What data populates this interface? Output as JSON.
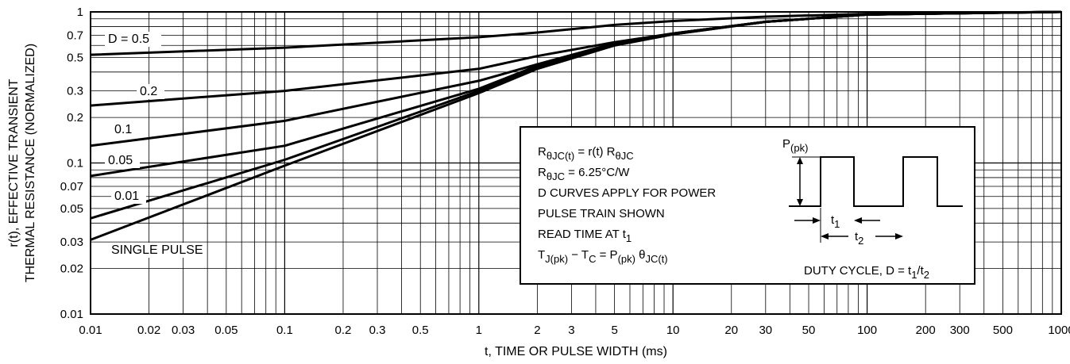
{
  "chart_data": {
    "type": "line",
    "x_scale": "log",
    "y_scale": "log",
    "xlim": [
      0.01,
      1000
    ],
    "ylim": [
      0.01,
      1
    ],
    "grid": true,
    "xlabel": "t, TIME OR PULSE WIDTH (ms)",
    "ylabel_line1": "r(t), EFFECTIVE TRANSIENT",
    "ylabel_line2": "THERMAL RESISTANCE (NORMALIZED)",
    "x_tick_labels": [
      "0.01",
      "0.02",
      "0.03",
      "0.05",
      "0.1",
      "0.2",
      "0.3",
      "0.5",
      "1",
      "2",
      "3",
      "5",
      "10",
      "20",
      "30",
      "50",
      "100",
      "200",
      "300",
      "500",
      "1000"
    ],
    "y_tick_labels": [
      "0.01",
      "0.02",
      "0.03",
      "0.05",
      "0.07",
      "0.1",
      "0.2",
      "0.3",
      "0.5",
      "0.7",
      "1"
    ],
    "series": [
      {
        "name": "D = 0.5",
        "x": [
          0.01,
          0.1,
          1,
          2,
          5,
          10,
          30,
          100,
          1000
        ],
        "y": [
          0.52,
          0.58,
          0.68,
          0.73,
          0.82,
          0.87,
          0.93,
          0.97,
          1.0
        ]
      },
      {
        "name": "0.2",
        "x": [
          0.01,
          0.1,
          1,
          2,
          5,
          10,
          30,
          100,
          1000
        ],
        "y": [
          0.24,
          0.3,
          0.42,
          0.51,
          0.63,
          0.72,
          0.86,
          0.96,
          1.0
        ]
      },
      {
        "name": "0.1",
        "x": [
          0.01,
          0.1,
          1,
          2,
          5,
          10,
          30,
          100,
          1000
        ],
        "y": [
          0.13,
          0.19,
          0.35,
          0.45,
          0.62,
          0.72,
          0.86,
          0.96,
          1.0
        ]
      },
      {
        "name": "0.05",
        "x": [
          0.01,
          0.1,
          1,
          2,
          5,
          10,
          30,
          100,
          1000
        ],
        "y": [
          0.082,
          0.13,
          0.31,
          0.44,
          0.61,
          0.72,
          0.86,
          0.96,
          1.0
        ]
      },
      {
        "name": "0.01",
        "x": [
          0.01,
          0.1,
          1,
          2,
          5,
          10,
          30,
          100,
          1000
        ],
        "y": [
          0.043,
          0.105,
          0.3,
          0.43,
          0.6,
          0.71,
          0.86,
          0.96,
          1.0
        ]
      },
      {
        "name": "SINGLE PULSE",
        "x": [
          0.01,
          0.1,
          1,
          2,
          5,
          10,
          30,
          100,
          1000
        ],
        "y": [
          0.031,
          0.096,
          0.29,
          0.42,
          0.6,
          0.71,
          0.86,
          0.96,
          1.0
        ]
      }
    ]
  },
  "info_box": {
    "lines": [
      {
        "parts": [
          [
            "R",
            0
          ],
          [
            "θJC(t)",
            1
          ],
          [
            " = r(t) R",
            0
          ],
          [
            "θJC",
            1
          ]
        ]
      },
      {
        "parts": [
          [
            "R",
            0
          ],
          [
            "θJC",
            1
          ],
          [
            " = 6.25°C/W",
            0
          ]
        ]
      },
      {
        "parts": [
          [
            "D CURVES APPLY FOR POWER",
            0
          ]
        ]
      },
      {
        "parts": [
          [
            "PULSE TRAIN SHOWN",
            0
          ]
        ]
      },
      {
        "parts": [
          [
            "READ TIME AT t",
            0
          ],
          [
            "1",
            1
          ]
        ]
      },
      {
        "parts": [
          [
            "T",
            0
          ],
          [
            "J(pk)",
            1
          ],
          [
            " − T",
            0
          ],
          [
            "C",
            1
          ],
          [
            " = P",
            0
          ],
          [
            "(pk)",
            1
          ],
          [
            " θ",
            0
          ],
          [
            "JC(t)",
            1
          ]
        ]
      }
    ],
    "diagram": {
      "p_label": [
        [
          "P",
          0
        ],
        [
          "(pk)",
          1
        ]
      ],
      "t1_label": [
        [
          "t",
          0
        ],
        [
          "1",
          1
        ]
      ],
      "t2_label": [
        [
          "t",
          0
        ],
        [
          "2",
          1
        ]
      ],
      "duty_label": [
        [
          "DUTY CYCLE, D = t",
          0
        ],
        [
          "1",
          1
        ],
        [
          "/t",
          0
        ],
        [
          "2",
          1
        ]
      ]
    }
  }
}
